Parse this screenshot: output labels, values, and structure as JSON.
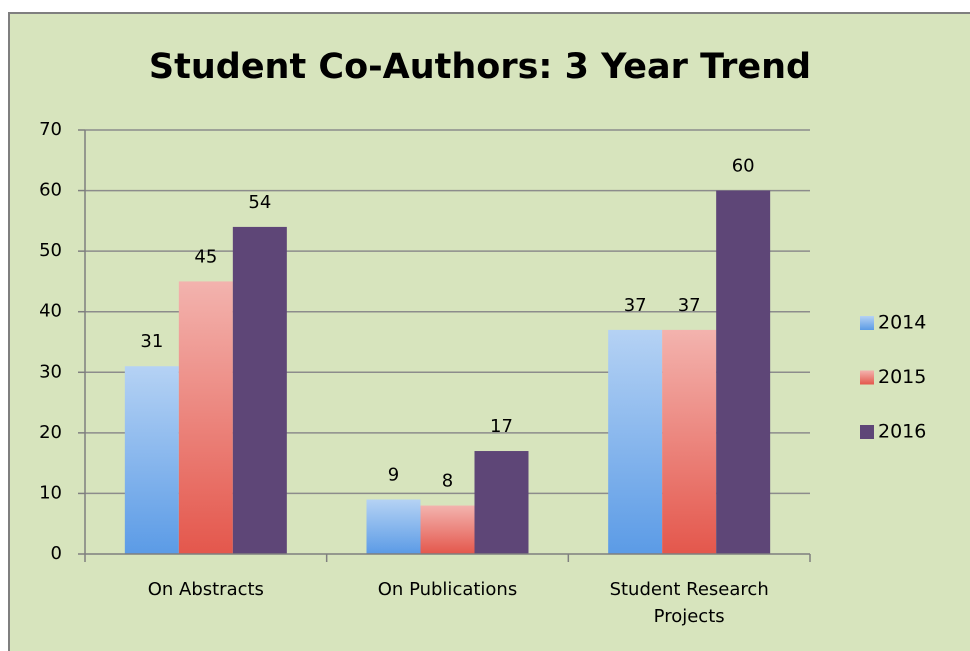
{
  "chart_data": {
    "type": "bar",
    "title": "Student Co-Authors: 3 Year Trend",
    "categories": [
      "On Abstracts",
      "On Publications",
      "Student Research Projects"
    ],
    "series": [
      {
        "name": "2014",
        "color": "#5b9be6",
        "values": [
          31,
          9,
          37
        ]
      },
      {
        "name": "2015",
        "color": "#e4574c",
        "values": [
          45,
          8,
          37
        ]
      },
      {
        "name": "2016",
        "color": "#5e4677",
        "values": [
          54,
          17,
          60
        ]
      }
    ],
    "ylim": [
      0,
      70
    ],
    "yticks": [
      0,
      10,
      20,
      30,
      40,
      50,
      60,
      70
    ],
    "grid": true,
    "legend": "right"
  }
}
